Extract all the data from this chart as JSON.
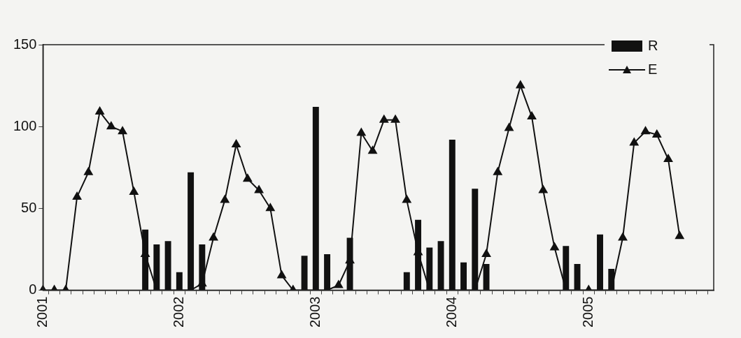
{
  "chart_data": {
    "type": "bar",
    "categories": [
      "2001",
      null,
      null,
      null,
      null,
      null,
      null,
      null,
      null,
      null,
      null,
      null,
      "2002",
      null,
      null,
      null,
      null,
      null,
      null,
      null,
      null,
      null,
      null,
      null,
      "2003",
      null,
      null,
      null,
      null,
      null,
      null,
      null,
      null,
      null,
      null,
      null,
      "2004",
      null,
      null,
      null,
      null,
      null,
      null,
      null,
      null,
      null,
      null,
      null,
      "2005",
      null,
      null,
      null,
      null,
      null,
      null,
      null,
      null,
      null,
      null,
      null
    ],
    "series": [
      {
        "name": "R",
        "color": "#111111",
        "values": [
          null,
          null,
          null,
          null,
          null,
          null,
          null,
          null,
          null,
          37,
          28,
          30,
          11,
          72,
          28,
          null,
          null,
          null,
          null,
          null,
          null,
          null,
          null,
          21,
          112,
          22,
          null,
          32,
          null,
          null,
          null,
          null,
          11,
          43,
          26,
          30,
          92,
          17,
          62,
          16,
          null,
          null,
          null,
          null,
          null,
          null,
          27,
          16,
          null,
          34,
          13,
          null,
          null,
          null,
          null,
          null,
          null,
          null,
          null,
          null
        ]
      },
      {
        "name": "E",
        "type": "line",
        "color": "#111111",
        "marker": "triangle",
        "line_style": "solid",
        "values": [
          0,
          0,
          0,
          57,
          72,
          109,
          100,
          97,
          60,
          22,
          0,
          0,
          0,
          0,
          4,
          32,
          55,
          89,
          68,
          61,
          50,
          9,
          0,
          0,
          0,
          0,
          3,
          18,
          96,
          85,
          104,
          104,
          55,
          23,
          0,
          0,
          0,
          0,
          0,
          22,
          72,
          99,
          125,
          106,
          61,
          26,
          0,
          0,
          0,
          0,
          0,
          32,
          90,
          97,
          95,
          80,
          33,
          null,
          null,
          null
        ]
      }
    ],
    "ylim": [
      0,
      150
    ],
    "yticks": [
      0,
      50,
      100,
      150
    ],
    "grid": false,
    "legend": "top right"
  }
}
